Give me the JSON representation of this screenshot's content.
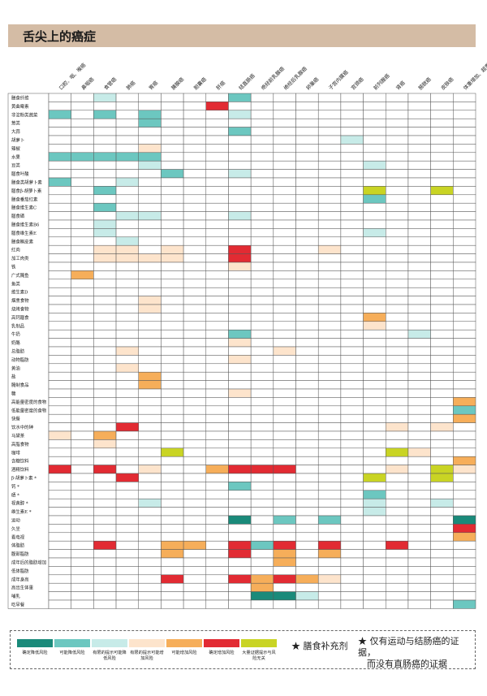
{
  "title": "舌尖上的癌症",
  "colors": {
    "1": "#1a8a7a",
    "2": "#6cc7c0",
    "3": "#c7ebe8",
    "4": "#fde4cc",
    "5": "#f6ae5a",
    "6": "#e22b33",
    "7": "#c9d424",
    "grid": "#555555"
  },
  "chart_data": {
    "type": "heatmap",
    "title": "舌尖上的癌症",
    "columns": [
      "口腔、咽、喉癌",
      "鼻咽癌",
      "食管癌",
      "肺癌",
      "胃癌",
      "胰腺癌",
      "胆囊癌",
      "肝癌",
      "结直肠癌",
      "绝经前乳腺癌",
      "绝经后乳腺癌",
      "卵巢癌",
      "子宫内膜癌",
      "宫颈癌",
      "前列腺癌",
      "肾癌",
      "膀胱癌",
      "皮肤癌",
      "体重增加、超重或肥胖"
    ],
    "rows": [
      {
        "label": "膳食纤维",
        "cells": {
          "3": 3,
          "9": 2
        }
      },
      {
        "label": "黄曲霉素",
        "cells": {
          "8": 6
        }
      },
      {
        "label": "非淀粉类蔬菜",
        "cells": {
          "1": 2,
          "3": 2,
          "5": 2,
          "9": 3
        }
      },
      {
        "label": "葱类",
        "cells": {
          "5": 2
        }
      },
      {
        "label": "大蒜",
        "cells": {
          "9": 2
        }
      },
      {
        "label": "胡萝卜",
        "cells": {
          "14": 3
        }
      },
      {
        "label": "辣椒",
        "cells": {
          "5": 4
        }
      },
      {
        "label": "水果",
        "cells": {
          "1": 2,
          "2": 2,
          "3": 2,
          "4": 2,
          "5": 2
        }
      },
      {
        "label": "豆类",
        "cells": {
          "5": 3,
          "15": 3
        }
      },
      {
        "label": "膳食叶酸",
        "cells": {
          "6": 2,
          "9": 3
        }
      },
      {
        "label": "膳食类胡萝卜素",
        "cells": {
          "1": 2,
          "4": 3
        }
      },
      {
        "label": "膳食β-胡萝卜素",
        "cells": {
          "3": 2,
          "15": 7,
          "18": 7
        }
      },
      {
        "label": "膳食番茄红素",
        "cells": {
          "15": 2
        }
      },
      {
        "label": "膳食维生素C",
        "cells": {
          "3": 2
        }
      },
      {
        "label": "膳食硒",
        "cells": {
          "4": 3,
          "5": 3,
          "9": 3
        }
      },
      {
        "label": "膳食维生素B6",
        "cells": {
          "3": 3
        }
      },
      {
        "label": "膳食维生素E",
        "cells": {
          "3": 3,
          "15": 3
        }
      },
      {
        "label": "膳食槲皮素",
        "cells": {
          "4": 3
        }
      },
      {
        "label": "红肉",
        "cells": {
          "3": 4,
          "4": 4,
          "6": 4,
          "9": 6,
          "13": 4
        }
      },
      {
        "label": "加工肉类",
        "cells": {
          "3": 4,
          "4": 4,
          "5": 4,
          "6": 4,
          "9": 6
        }
      },
      {
        "label": "铁",
        "cells": {
          "9": 4
        }
      },
      {
        "label": "广式腌鱼",
        "cells": {
          "2": 5
        }
      },
      {
        "label": "鱼类",
        "cells": {}
      },
      {
        "label": "维生素D",
        "cells": {}
      },
      {
        "label": "烟熏食物",
        "cells": {
          "5": 4
        }
      },
      {
        "label": "烧烤食物",
        "cells": {
          "5": 4
        }
      },
      {
        "label": "高钙膳食",
        "cells": {
          "15": 5
        }
      },
      {
        "label": "乳制品",
        "cells": {
          "15": 4
        }
      },
      {
        "label": "牛奶",
        "cells": {
          "9": 2,
          "17": 3
        }
      },
      {
        "label": "奶酪",
        "cells": {
          "9": 4
        }
      },
      {
        "label": "总脂肪",
        "cells": {
          "4": 4,
          "11": 4
        }
      },
      {
        "label": "动物脂肪",
        "cells": {
          "9": 4
        }
      },
      {
        "label": "黄油",
        "cells": {
          "4": 4
        }
      },
      {
        "label": "盐",
        "cells": {
          "5": 5
        }
      },
      {
        "label": "腌制食品",
        "cells": {
          "5": 5
        }
      },
      {
        "label": "糖",
        "cells": {
          "9": 4
        }
      },
      {
        "label": "高能量密度的食物",
        "cells": {
          "19": 5
        }
      },
      {
        "label": "低能量密度的食物",
        "cells": {
          "19": 2
        }
      },
      {
        "label": "快餐",
        "cells": {
          "19": 5
        }
      },
      {
        "label": "饮水中的砷",
        "cells": {
          "4": 6,
          "16": 4,
          "18": 4
        }
      },
      {
        "label": "马黛茶",
        "cells": {
          "1": 4,
          "3": 5
        }
      },
      {
        "label": "高脂食物",
        "cells": {
          "3": 4
        }
      },
      {
        "label": "咖啡",
        "cells": {
          "6": 7,
          "16": 7,
          "17": 4
        }
      },
      {
        "label": "含糖饮料",
        "cells": {
          "19": 5
        }
      },
      {
        "label": "酒精饮料",
        "cells": {
          "1": 6,
          "3": 6,
          "5": 4,
          "8": 5,
          "9": 6,
          "10": 6,
          "11": 6,
          "16": 4,
          "18": 7,
          "19": 4
        }
      },
      {
        "label": "β-胡萝卜素 *",
        "cells": {
          "4": 6,
          "15": 7,
          "18": 7
        }
      },
      {
        "label": "钙 *",
        "cells": {
          "9": 2
        }
      },
      {
        "label": "硒 *",
        "cells": {
          "15": 2
        }
      },
      {
        "label": "视黄醇 *",
        "cells": {
          "5": 3,
          "15": 3,
          "18": 3
        }
      },
      {
        "label": "维生素E *",
        "cells": {
          "15": 3
        }
      },
      {
        "label": "运动",
        "cells": {
          "9": 1,
          "11": 2,
          "13": 2,
          "19": 1
        }
      },
      {
        "label": "久坐",
        "cells": {
          "19": 6
        }
      },
      {
        "label": "看电视",
        "cells": {
          "19": 5
        }
      },
      {
        "label": "体脂肪",
        "cells": {
          "3": 6,
          "6": 5,
          "7": 5,
          "9": 6,
          "10": 2,
          "11": 6,
          "13": 6,
          "16": 6,
          "19": 0
        }
      },
      {
        "label": "腹部脂肪",
        "cells": {
          "6": 5,
          "9": 6,
          "11": 5,
          "13": 5
        }
      },
      {
        "label": "成年后的脂肪增加",
        "cells": {
          "11": 5
        }
      },
      {
        "label": "低体脂肪",
        "cells": {}
      },
      {
        "label": "成年身高",
        "cells": {
          "6": 6,
          "9": 6,
          "10": 5,
          "11": 6,
          "12": 5,
          "13": 4
        }
      },
      {
        "label": "高出生体重",
        "cells": {
          "10": 5
        }
      },
      {
        "label": "哺乳",
        "cells": {
          "10": 1,
          "11": 1,
          "12": 3
        }
      },
      {
        "label": "吃早餐",
        "cells": {
          "19": 2
        }
      }
    ]
  },
  "legend": {
    "items": [
      {
        "level": "1",
        "text": "确定降低风险"
      },
      {
        "level": "2",
        "text": "可能降低风险"
      },
      {
        "level": "3",
        "text": "有限的提示可能降低风险"
      },
      {
        "level": "4",
        "text": "有限的提示可能增加风险"
      },
      {
        "level": "5",
        "text": "可能增加风险"
      },
      {
        "level": "6",
        "text": "确定增加风险"
      },
      {
        "level": "7",
        "text": "大量证据提示与风险无关"
      }
    ],
    "note1": "膳食补充剂",
    "note2a": "仅有运动与结肠癌的证据，",
    "note2b": "而没有直肠癌的证据"
  }
}
